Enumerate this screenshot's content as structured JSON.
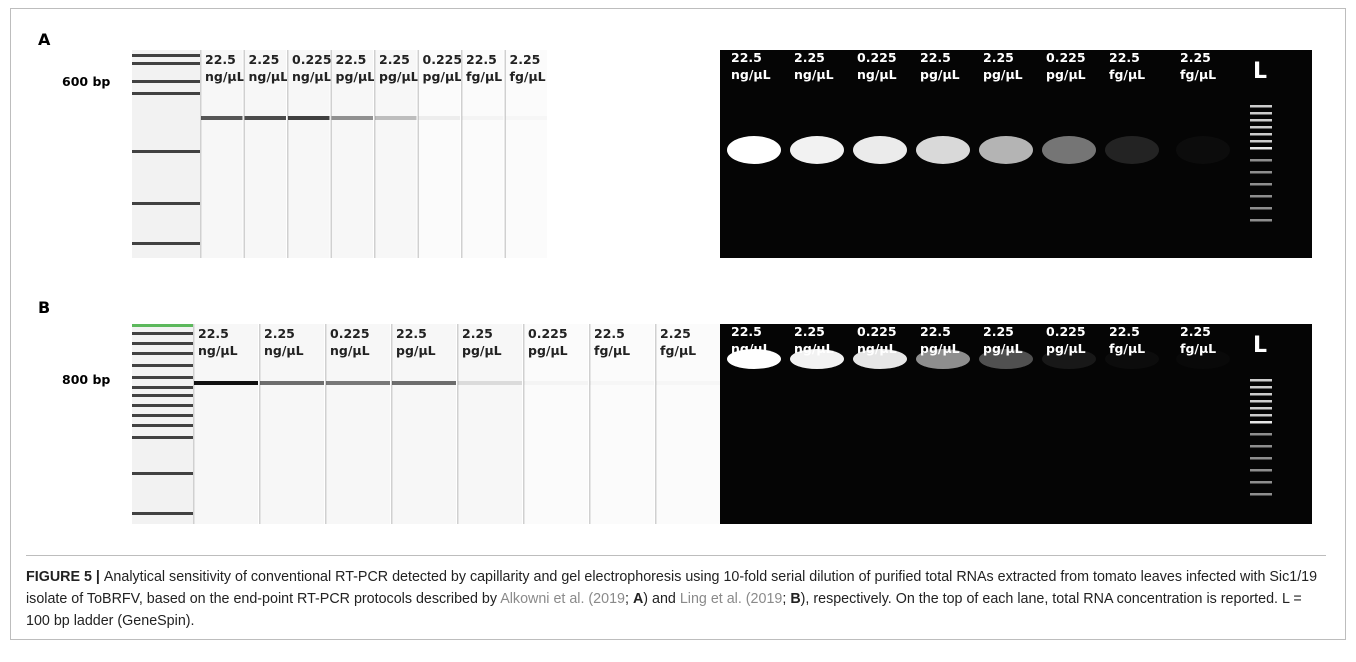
{
  "panels": [
    {
      "label": "A",
      "marker": "600 bp",
      "capillary_lanes": [
        {
          "value": "22.5",
          "unit": "ng/µL"
        },
        {
          "value": "2.25",
          "unit": "ng/µL"
        },
        {
          "value": "0.225",
          "unit": "ng/µL"
        },
        {
          "value": "22.5",
          "unit": "pg/µL"
        },
        {
          "value": "2.25",
          "unit": "pg/µL"
        },
        {
          "value": "0.225",
          "unit": "pg/µL"
        },
        {
          "value": "22.5",
          "unit": "fg/µL"
        },
        {
          "value": "2.25",
          "unit": "fg/µL"
        }
      ],
      "gel_lanes": [
        {
          "value": "22.5",
          "unit": "ng/µL"
        },
        {
          "value": "2.25",
          "unit": "ng/µL"
        },
        {
          "value": "0.225",
          "unit": "ng/µL"
        },
        {
          "value": "22.5",
          "unit": "pg/µL"
        },
        {
          "value": "2.25",
          "unit": "pg/µL"
        },
        {
          "value": "0.225",
          "unit": "pg/µL"
        },
        {
          "value": "22.5",
          "unit": "fg/µL"
        },
        {
          "value": "2.25",
          "unit": "fg/µL"
        }
      ],
      "ladder_label": "L"
    },
    {
      "label": "B",
      "marker": "800 bp",
      "capillary_lanes": [
        {
          "value": "22.5",
          "unit": "ng/µL"
        },
        {
          "value": "2.25",
          "unit": "ng/µL"
        },
        {
          "value": "0.225",
          "unit": "ng/µL"
        },
        {
          "value": "22.5",
          "unit": "pg/µL"
        },
        {
          "value": "2.25",
          "unit": "pg/µL"
        },
        {
          "value": "0.225",
          "unit": "pg/µL"
        },
        {
          "value": "22.5",
          "unit": "fg/µL"
        },
        {
          "value": "2.25",
          "unit": "fg/µL"
        }
      ],
      "gel_lanes": [
        {
          "value": "22.5",
          "unit": "ng/µL"
        },
        {
          "value": "2.25",
          "unit": "ng/µL"
        },
        {
          "value": "0.225",
          "unit": "ng/µL"
        },
        {
          "value": "22.5",
          "unit": "pg/µL"
        },
        {
          "value": "2.25",
          "unit": "pg/µL"
        },
        {
          "value": "0.225",
          "unit": "pg/µL"
        },
        {
          "value": "22.5",
          "unit": "fg/µL"
        },
        {
          "value": "2.25",
          "unit": "fg/µL"
        }
      ],
      "ladder_label": "L"
    }
  ],
  "caption": [
    {
      "text": "FIGURE 5 | ",
      "style": "bold"
    },
    {
      "text": "Analytical sensitivity of conventional RT-PCR detected by capillarity and gel electrophoresis using 10-fold serial dilution of purified total RNAs extracted from tomato leaves infected with Sic1/19 isolate of ToBRFV, based on the end-point RT-PCR protocols described by ",
      "style": "plain"
    },
    {
      "text": "Alkowni et al. (2019",
      "style": "link"
    },
    {
      "text": "; ",
      "style": "plain"
    },
    {
      "text": "A",
      "style": "bold"
    },
    {
      "text": ") and ",
      "style": "plain"
    },
    {
      "text": "Ling et al. (2019",
      "style": "link"
    },
    {
      "text": "; ",
      "style": "plain"
    },
    {
      "text": "B",
      "style": "bold"
    },
    {
      "text": "), respectively. On the top of each lane, total RNA concentration is reported. L = 100 bp ladder (GeneSpin).",
      "style": "plain"
    }
  ]
}
